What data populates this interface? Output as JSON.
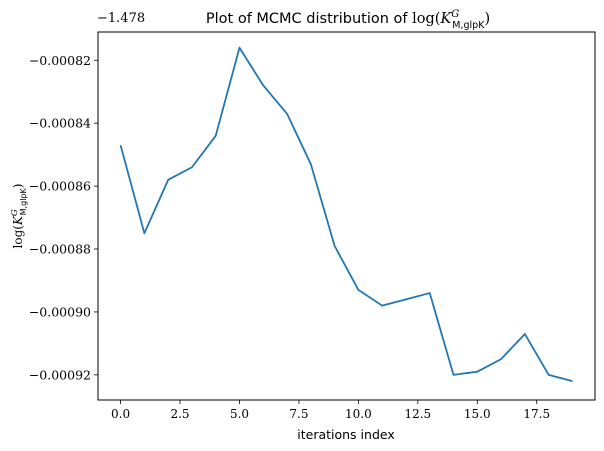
{
  "chart_data": {
    "type": "line",
    "title": {
      "prefix": "Plot of MCMC distribution of ",
      "math_fn": "log(",
      "math_var": "K",
      "sup": "G",
      "sub": "M,glpK",
      "close": ")"
    },
    "xlabel": "iterations index",
    "ylabel": {
      "math_fn": "log(",
      "math_var": "K",
      "sup": "G",
      "sub": "M,glpK",
      "close": ")"
    },
    "offset_label": "−1.478",
    "y_offset": -1.478,
    "xlim": [
      -0.95,
      19.95
    ],
    "ylim": [
      -0.000928,
      -0.000811
    ],
    "x_ticks": [
      0.0,
      2.5,
      5.0,
      7.5,
      10.0,
      12.5,
      15.0,
      17.5
    ],
    "x_tick_labels": [
      "0.0",
      "2.5",
      "5.0",
      "7.5",
      "10.0",
      "12.5",
      "15.0",
      "17.5"
    ],
    "y_ticks": [
      -0.00082,
      -0.00084,
      -0.00086,
      -0.00088,
      -0.0009,
      -0.00092
    ],
    "y_tick_labels": [
      "−0.00082",
      "−0.00084",
      "−0.00086",
      "−0.00088",
      "−0.00090",
      "−0.00092"
    ],
    "grid": false,
    "line_color": "#1f77b4",
    "series": [
      {
        "x": [
          0,
          1,
          2,
          3,
          4,
          5,
          6,
          7,
          8,
          9,
          10,
          11,
          12,
          13,
          14,
          15,
          16,
          17,
          18,
          19
        ],
        "values": [
          -0.000847,
          -0.000875,
          -0.000858,
          -0.000854,
          -0.000844,
          -0.000816,
          -0.000828,
          -0.000837,
          -0.000853,
          -0.000879,
          -0.000893,
          -0.000898,
          -0.000896,
          -0.000894,
          -0.00092,
          -0.000919,
          -0.000915,
          -0.000907,
          -0.00092,
          -0.000922
        ]
      }
    ]
  }
}
